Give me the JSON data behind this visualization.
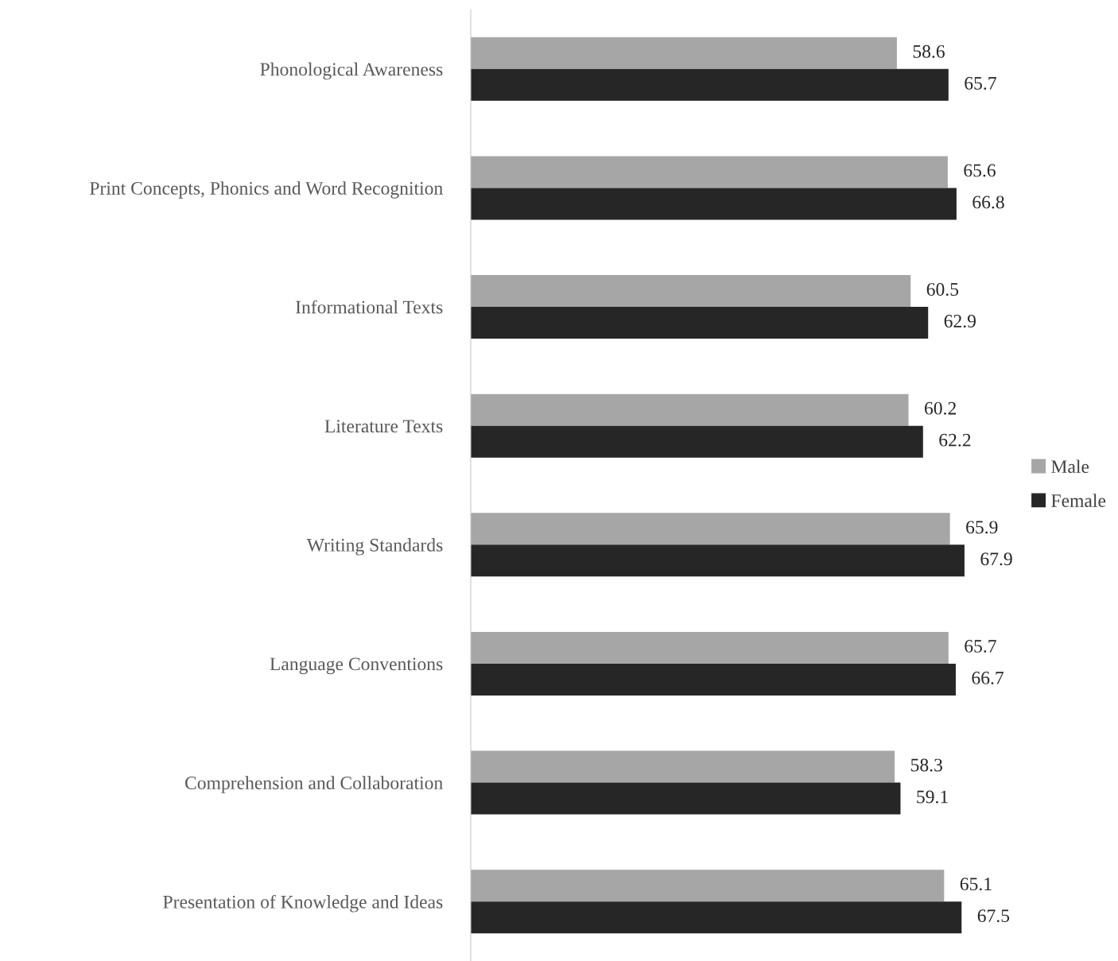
{
  "chart_data": {
    "type": "bar",
    "orientation": "horizontal",
    "categories": [
      "Phonological Awareness",
      "Print Concepts, Phonics and Word Recognition",
      "Informational Texts",
      "Literature Texts",
      "Writing Standards",
      "Language Conventions",
      "Comprehension and Collaboration",
      "Presentation of Knowledge and Ideas"
    ],
    "series": [
      {
        "name": "Male",
        "color": "#a6a6a6",
        "values": [
          58.6,
          65.6,
          60.5,
          60.2,
          65.9,
          65.7,
          58.3,
          65.1
        ]
      },
      {
        "name": "Female",
        "color": "#262626",
        "values": [
          65.7,
          66.8,
          62.9,
          62.2,
          67.9,
          66.7,
          59.1,
          67.5
        ]
      }
    ],
    "data_labels": true,
    "tick_labels": "y",
    "legend": "right",
    "grid": false
  }
}
